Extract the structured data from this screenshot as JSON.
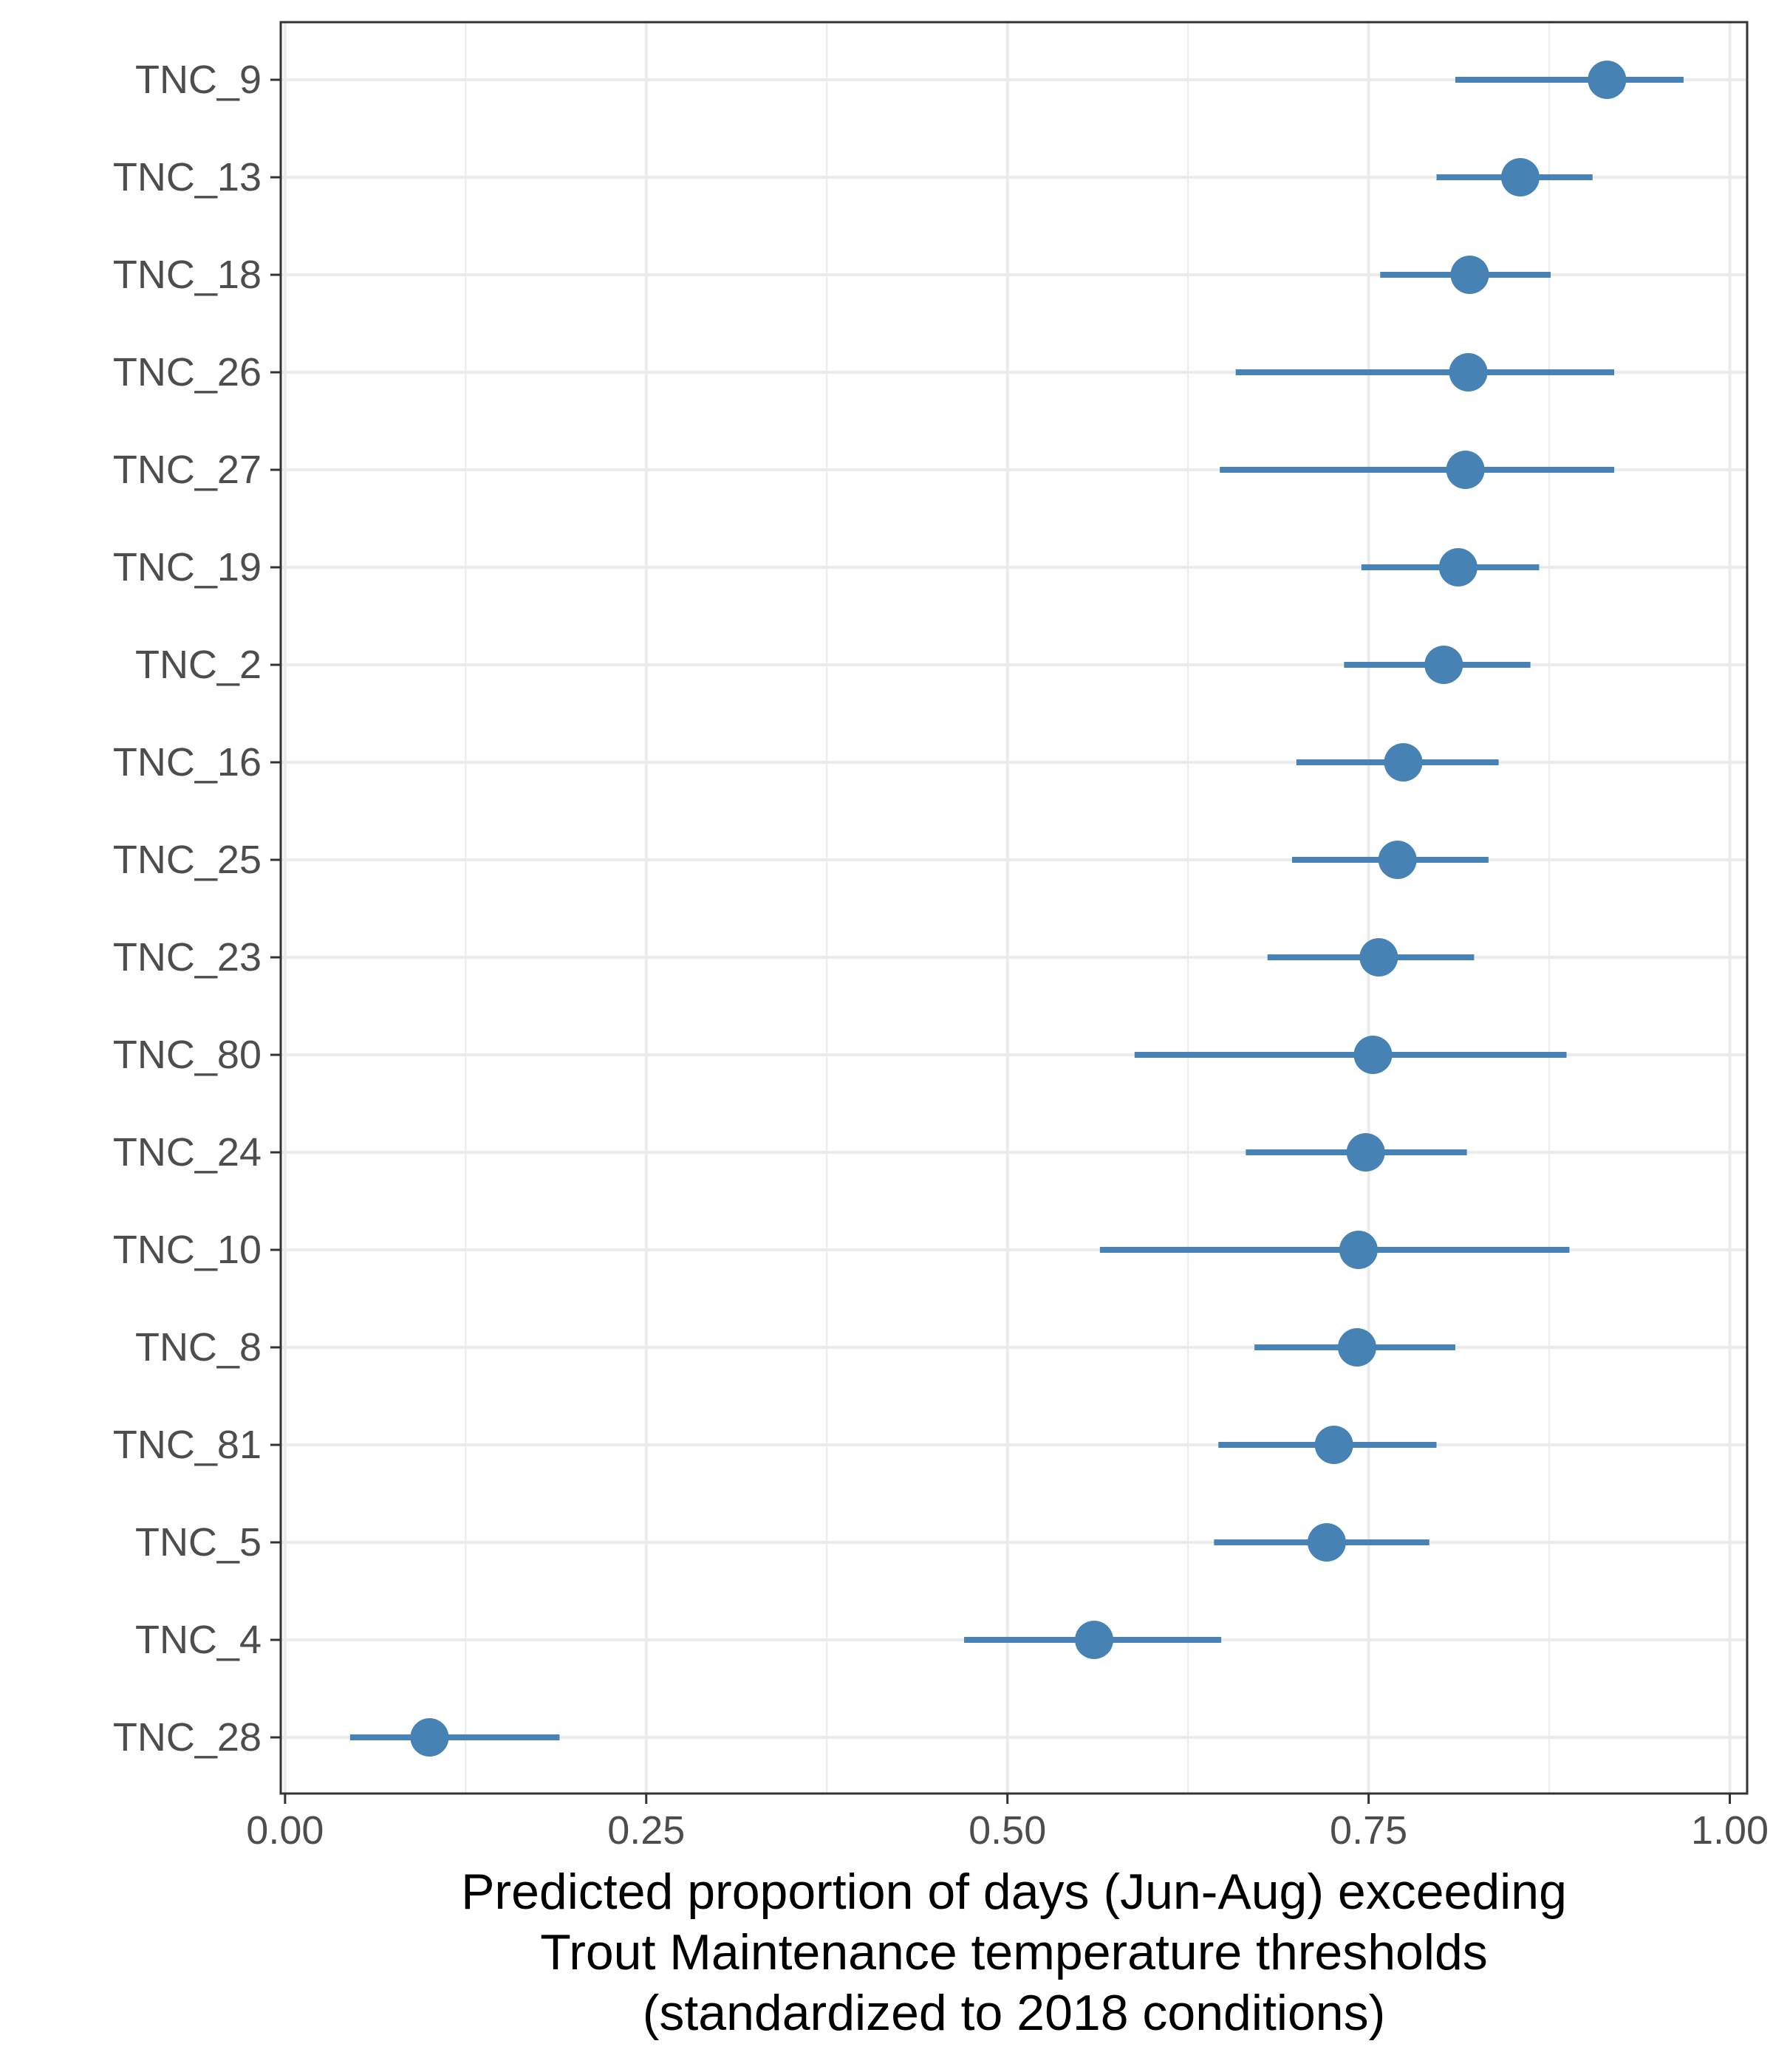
{
  "chart_data": {
    "type": "scatter",
    "subtype": "dot-and-whisker",
    "title": "",
    "xlabel_lines": [
      "Predicted proportion of days (Jun-Aug) exceeding",
      "Trout Maintenance temperature thresholds",
      "(standardized to 2018 conditions)"
    ],
    "ylabel": "",
    "xlim": [
      -0.003,
      1.012
    ],
    "x_ticks": [
      0.0,
      0.25,
      0.5,
      0.75,
      1.0
    ],
    "x_tick_labels": [
      "0.00",
      "0.25",
      "0.50",
      "0.75",
      "1.00"
    ],
    "grid": true,
    "legend": "none",
    "colors": {
      "series": "#4682b4",
      "grid": "#ebebeb",
      "panel_border": "#333333",
      "tick_text": "#4d4d4d"
    },
    "categories": [
      "TNC_9",
      "TNC_13",
      "TNC_18",
      "TNC_26",
      "TNC_27",
      "TNC_19",
      "TNC_2",
      "TNC_16",
      "TNC_25",
      "TNC_23",
      "TNC_80",
      "TNC_24",
      "TNC_10",
      "TNC_8",
      "TNC_81",
      "TNC_5",
      "TNC_4",
      "TNC_28"
    ],
    "estimates": [
      0.915,
      0.855,
      0.82,
      0.819,
      0.817,
      0.812,
      0.802,
      0.774,
      0.77,
      0.757,
      0.753,
      0.748,
      0.743,
      0.742,
      0.726,
      0.721,
      0.56,
      0.1
    ],
    "lower": [
      0.81,
      0.797,
      0.758,
      0.658,
      0.647,
      0.745,
      0.733,
      0.7,
      0.697,
      0.68,
      0.588,
      0.665,
      0.564,
      0.671,
      0.646,
      0.643,
      0.47,
      0.045
    ],
    "upper": [
      0.968,
      0.905,
      0.876,
      0.92,
      0.92,
      0.868,
      0.862,
      0.84,
      0.833,
      0.823,
      0.887,
      0.818,
      0.889,
      0.81,
      0.797,
      0.792,
      0.648,
      0.19
    ]
  }
}
